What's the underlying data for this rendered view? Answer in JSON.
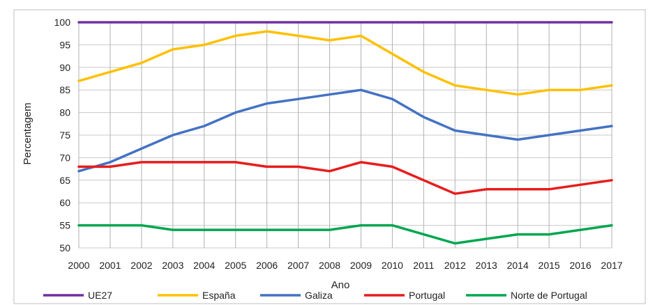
{
  "chart_data": {
    "type": "line",
    "title": "",
    "xlabel": "Ano",
    "ylabel": "Percentagem",
    "ylim": [
      50,
      100
    ],
    "yticks": [
      "100",
      "95",
      "90",
      "85",
      "80",
      "75",
      "70",
      "65",
      "60",
      "55",
      "50"
    ],
    "grid": "vertical and horizontal",
    "legend_position": "bottom",
    "categories": [
      "2000",
      "2001",
      "2002",
      "2003",
      "2004",
      "2005",
      "2006",
      "2007",
      "2008",
      "2009",
      "2010",
      "2011",
      "2012",
      "2013",
      "2014",
      "2015",
      "2016",
      "2017"
    ],
    "series": [
      {
        "name": "UE27",
        "color": "#7030a0",
        "values": [
          100,
          100,
          100,
          100,
          100,
          100,
          100,
          100,
          100,
          100,
          100,
          100,
          100,
          100,
          100,
          100,
          100,
          100
        ]
      },
      {
        "name": "España",
        "color": "#ffc000",
        "values": [
          87,
          89,
          91,
          94,
          95,
          97,
          98,
          97,
          96,
          97,
          93,
          89,
          86,
          85,
          84,
          85,
          85,
          86
        ]
      },
      {
        "name": "Galiza",
        "color": "#4472c4",
        "values": [
          67,
          69,
          72,
          75,
          77,
          80,
          82,
          83,
          84,
          85,
          83,
          79,
          76,
          75,
          74,
          75,
          76,
          77
        ]
      },
      {
        "name": "Portugal",
        "color": "#e81c1c",
        "values": [
          68,
          68,
          69,
          69,
          69,
          69,
          68,
          68,
          67,
          69,
          68,
          65,
          62,
          63,
          63,
          63,
          64,
          65
        ]
      },
      {
        "name": "Norte de Portugal",
        "color": "#00a650",
        "values": [
          55,
          55,
          55,
          54,
          54,
          54,
          54,
          54,
          54,
          55,
          55,
          53,
          51,
          52,
          53,
          53,
          54,
          55
        ]
      }
    ]
  }
}
